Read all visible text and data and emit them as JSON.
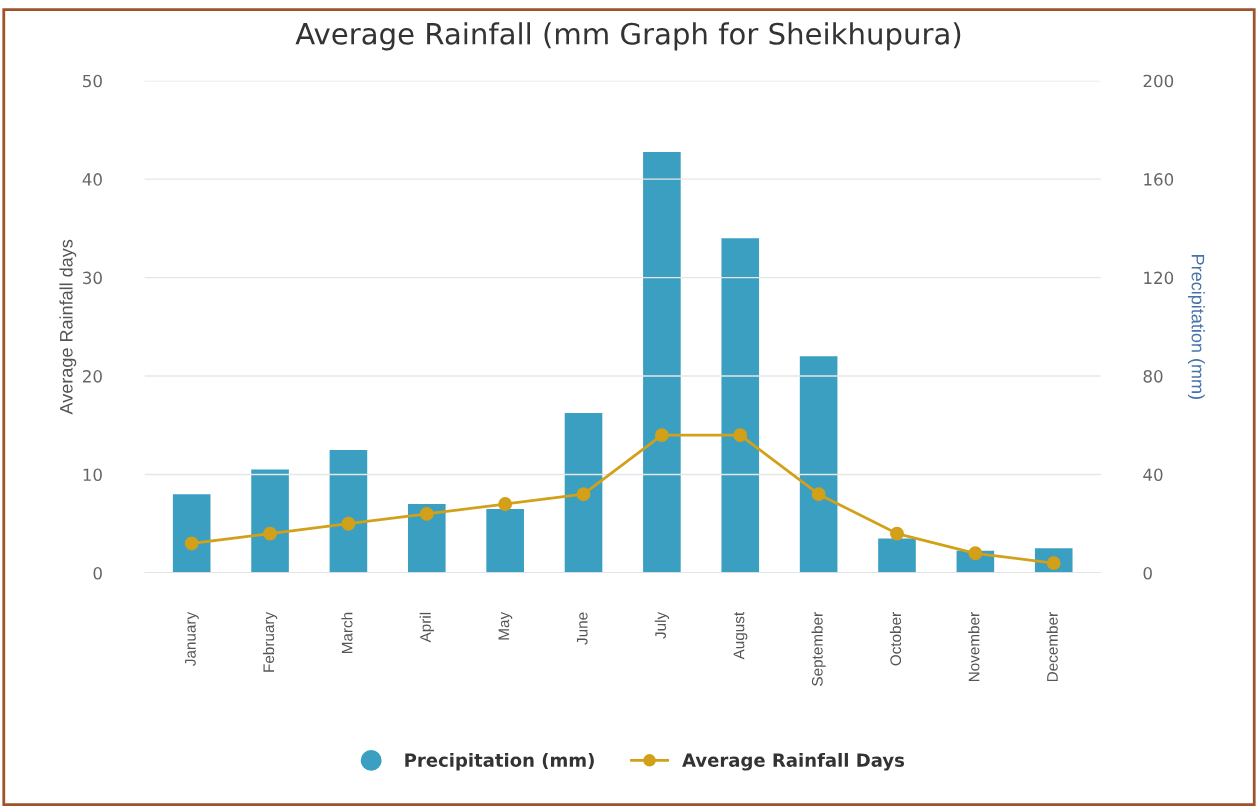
{
  "chart_data": {
    "type": "bar",
    "title": "Average Rainfall (mm Graph for Sheikhupura)",
    "ylabel": "Average Rainfall days",
    "y2label": "Precipitation (mm)",
    "categories": [
      "January",
      "February",
      "March",
      "April",
      "May",
      "June",
      "July",
      "August",
      "September",
      "October",
      "November",
      "December"
    ],
    "series": [
      {
        "name": "Precipitation (mm)",
        "axis": "y2",
        "color": "#3a9fc0",
        "values": [
          32,
          42,
          50,
          28,
          26,
          65,
          171,
          136,
          88,
          14,
          9,
          10
        ]
      },
      {
        "name": "Average Rainfall Days",
        "type": "line",
        "color": "#d2a019",
        "marker": "circle",
        "values": [
          3,
          4,
          5,
          6,
          7,
          8,
          14,
          14,
          8,
          4,
          2,
          1
        ]
      }
    ],
    "ylim": [
      0,
      50
    ],
    "yticks": [
      0,
      10,
      20,
      30,
      40,
      50
    ],
    "y2lim": [
      0,
      200
    ],
    "y2ticks": [
      0,
      40,
      80,
      120,
      160,
      200
    ],
    "grid": "y",
    "legend": "bottom"
  }
}
